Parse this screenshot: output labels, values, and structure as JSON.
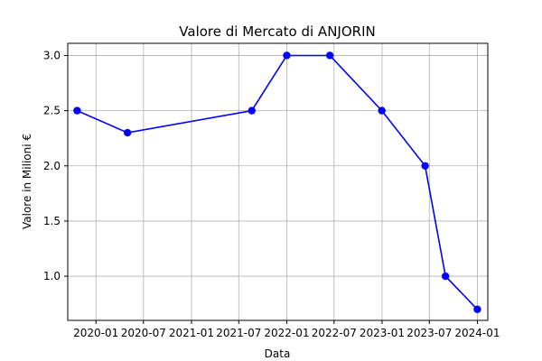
{
  "chart_data": {
    "type": "line",
    "title": "Valore di Mercato di ANJORIN",
    "xlabel": "Data",
    "ylabel": "Valore in Milioni €",
    "x_ticks": [
      "2020-01",
      "2020-07",
      "2021-01",
      "2021-07",
      "2022-01",
      "2022-07",
      "2023-01",
      "2023-07",
      "2024-01"
    ],
    "y_ticks": [
      "1.0",
      "1.5",
      "2.0",
      "2.5",
      "3.0"
    ],
    "x_range": [
      "2019-09-15",
      "2024-02-10"
    ],
    "ylim": [
      0.6,
      3.11
    ],
    "grid": true,
    "colors": {
      "line": "#0000ff",
      "marker": "#0000ff",
      "grid": "#b0b0b0"
    },
    "series": [
      {
        "points": [
          {
            "x": "2019-10-21",
            "y": 2.5
          },
          {
            "x": "2020-05-01",
            "y": 2.3
          },
          {
            "x": "2021-08-20",
            "y": 2.5
          },
          {
            "x": "2022-01-01",
            "y": 3.0
          },
          {
            "x": "2022-06-15",
            "y": 3.0
          },
          {
            "x": "2022-12-31",
            "y": 2.5
          },
          {
            "x": "2023-06-15",
            "y": 2.0
          },
          {
            "x": "2023-09-01",
            "y": 1.0
          },
          {
            "x": "2024-01-01",
            "y": 0.7
          }
        ]
      }
    ]
  }
}
